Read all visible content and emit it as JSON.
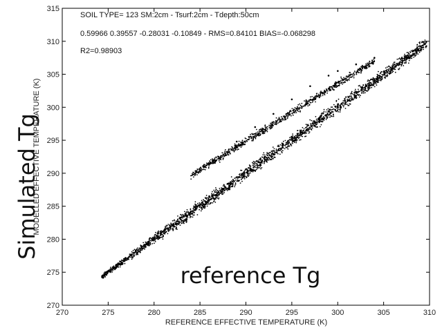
{
  "chart_data": {
    "type": "scatter",
    "title": "",
    "xlabel": "REFERENCE EFFECTIVE TEMPERATURE (K)",
    "ylabel": "MODELLED EFFECTIVE TEMPERATURE (K)",
    "xlim": [
      270,
      310
    ],
    "ylim": [
      270,
      315
    ],
    "xticks": [
      "270",
      "275",
      "280",
      "285",
      "290",
      "295",
      "300",
      "305",
      "310"
    ],
    "yticks": [
      "270",
      "275",
      "280",
      "285",
      "290",
      "295",
      "300",
      "305",
      "310",
      "315"
    ],
    "grid": false,
    "legend": "none",
    "marker_color": "#000000",
    "annotations": [
      "SOIL TYPE= 123   SM:2cm - Tsurf:2cm - Tdepth:50cm",
      "0.59966     0.39557     -0.28031     -0.10849    -  RMS=0.84101  BIAS=-0.068298",
      "R2=0.98903"
    ],
    "overlay_labels": {
      "y": "Simulated Tg",
      "x": "reference Tg"
    },
    "series": [
      {
        "x": [
          274.5,
          276,
          278,
          280,
          282,
          284,
          286,
          288,
          290,
          292,
          294,
          296,
          297.5,
          298,
          300,
          302,
          304,
          306,
          308,
          309.5
        ],
        "y": [
          274.5,
          276.2,
          278.3,
          280.2,
          282.1,
          284.2,
          286.5,
          288.4,
          290.6,
          292.4,
          294.4,
          296.3,
          297.2,
          298.2,
          300.1,
          302.2,
          304.1,
          305.9,
          307.8,
          309.6
        ],
        "x_upper_branch": [
          285,
          287,
          289,
          291,
          293,
          295,
          297,
          299,
          300,
          302,
          304
        ],
        "y_upper_branch": [
          290.5,
          292.5,
          294.8,
          297,
          299,
          301.2,
          303.2,
          304.8,
          305.5,
          306.5,
          307.5
        ]
      }
    ]
  }
}
